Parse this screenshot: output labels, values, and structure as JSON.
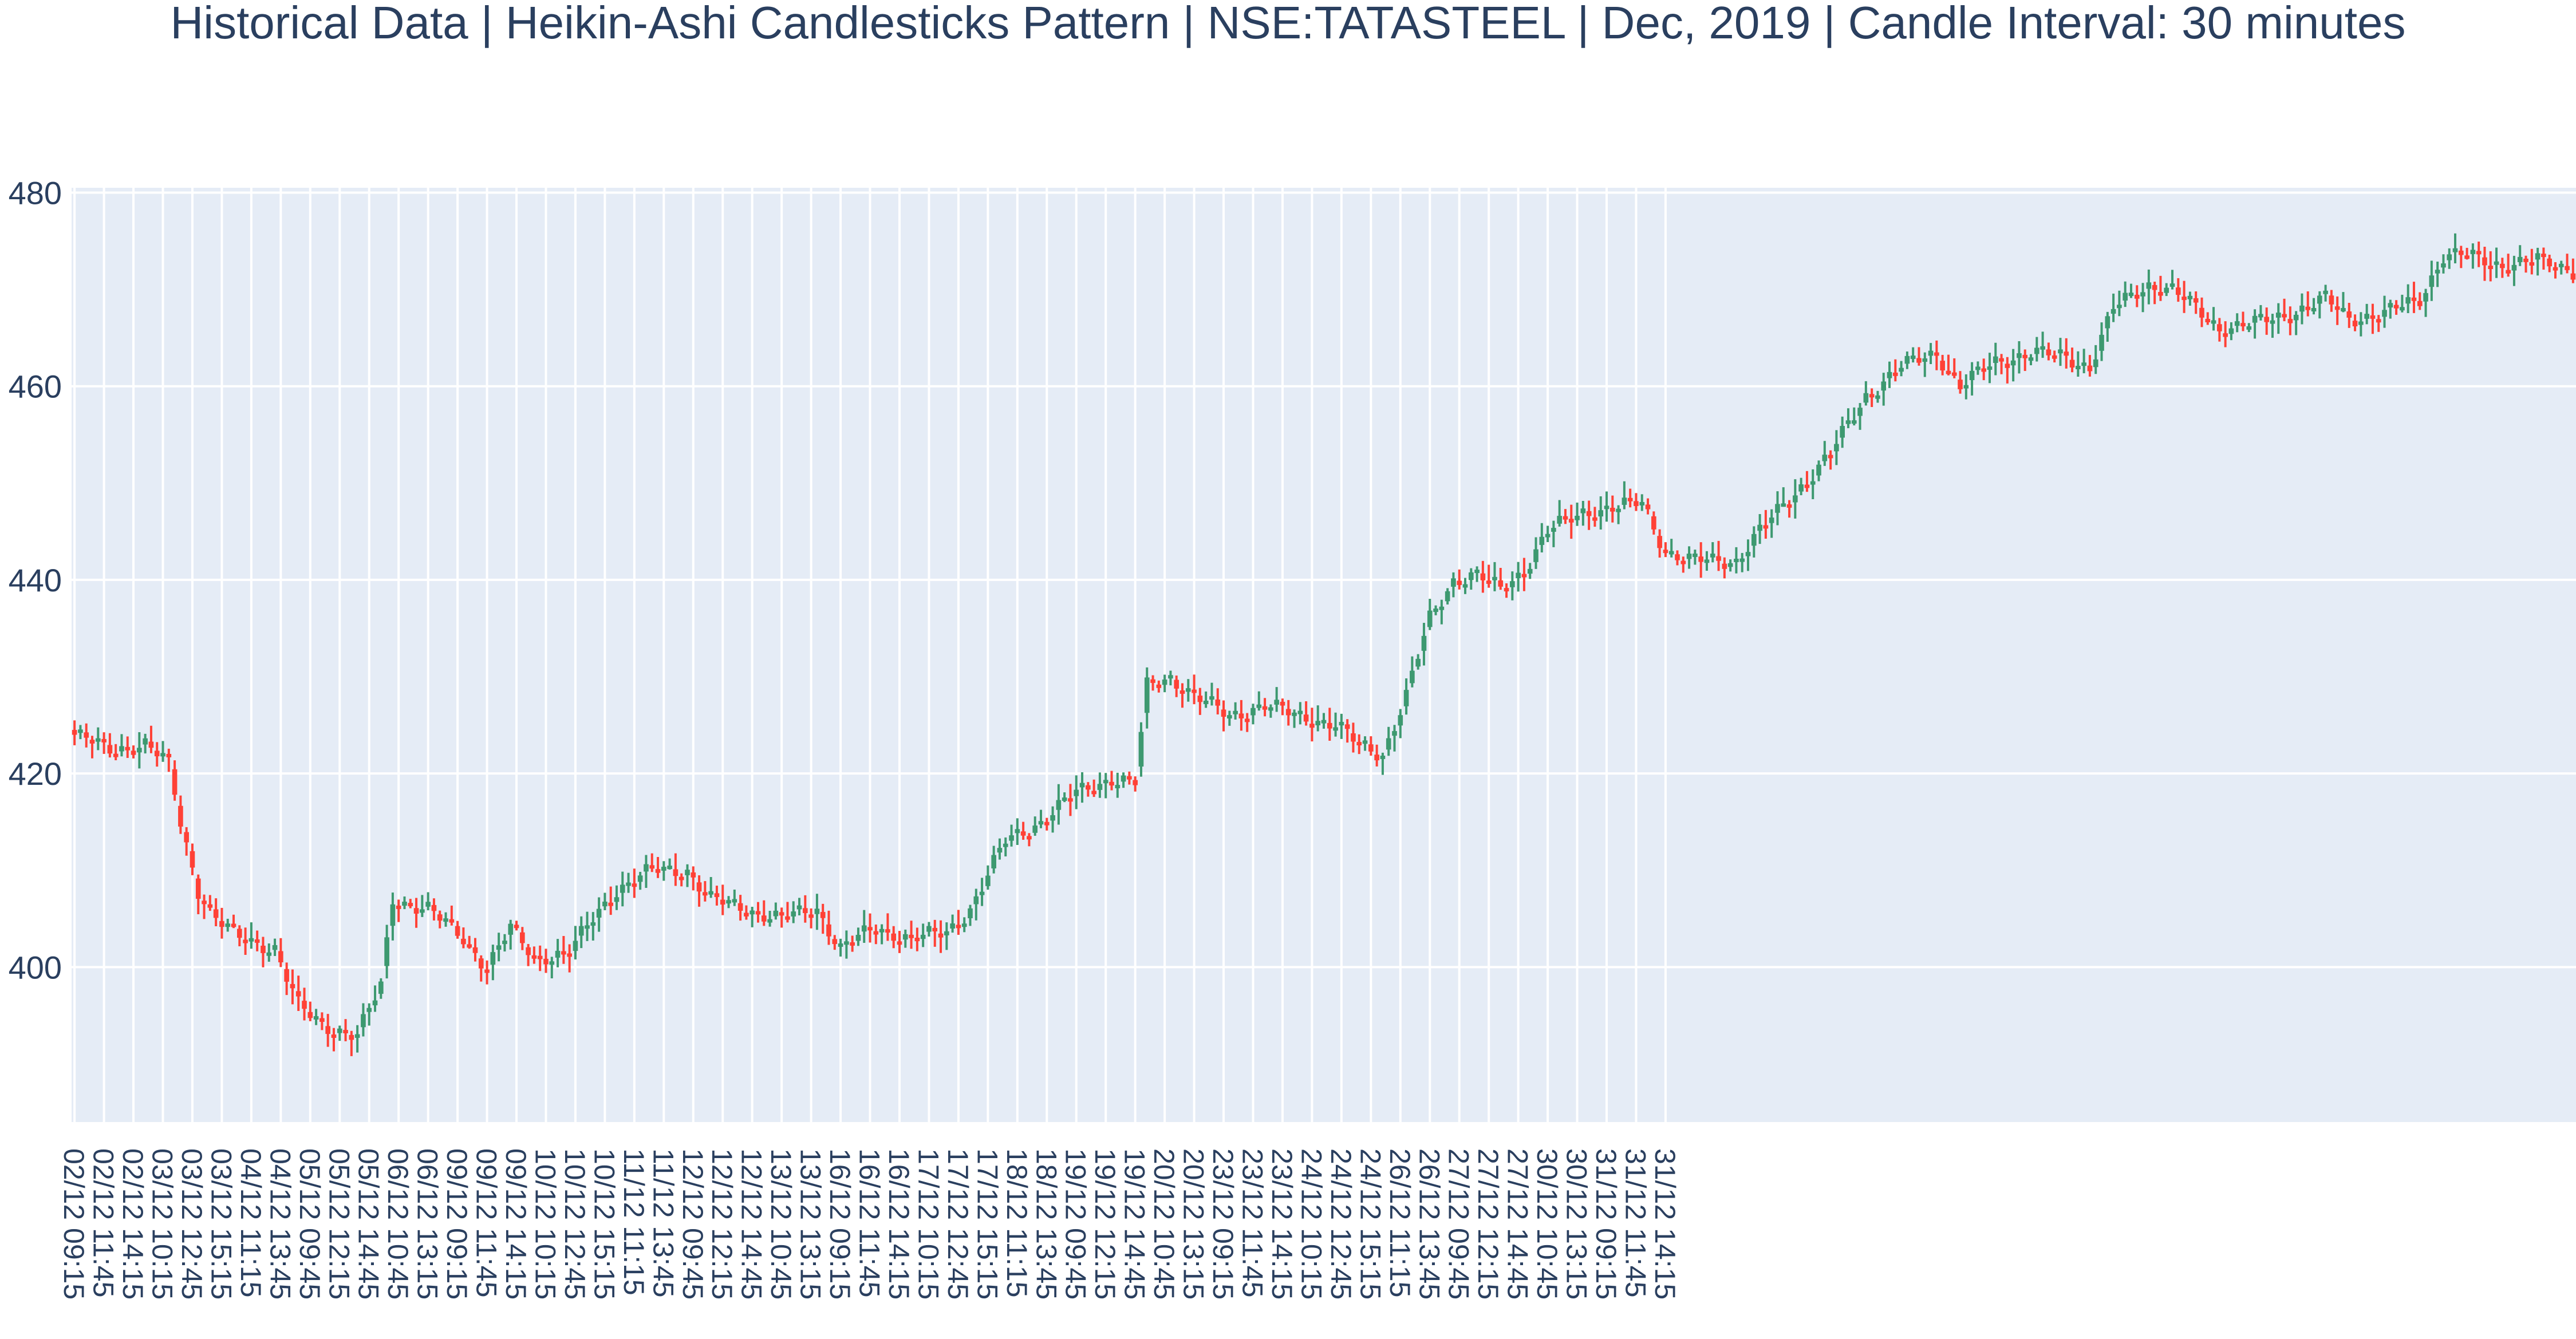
{
  "chart_data": {
    "type": "candlestick",
    "variant": "heikin-ashi",
    "title": "Historical Data | Heikin-Ashi Candlesticks Pattern | NSE:TATASTEEL | Dec, 2019 | Candle Interval: 30 minutes",
    "xlabel": "",
    "ylabel": "",
    "ylim": [
      384,
      480.5
    ],
    "yticks": [
      400,
      420,
      440,
      460,
      480
    ],
    "grid": true,
    "legend": "none",
    "colors": {
      "increasing": "#3d9970",
      "decreasing": "#ff4136",
      "plot_background": "#e5ecf6",
      "grid": "#ffffff",
      "text": "#2a3f5f"
    },
    "session_times": [
      "09:15",
      "09:45",
      "10:15",
      "10:45",
      "11:15",
      "11:45",
      "12:15",
      "12:45",
      "13:15",
      "13:45",
      "14:15",
      "14:45",
      "15:15"
    ],
    "trading_days": [
      "02/12",
      "03/12",
      "04/12",
      "05/12",
      "06/12",
      "09/12",
      "10/12",
      "11/12",
      "12/12",
      "13/12",
      "16/12",
      "17/12",
      "18/12",
      "19/12",
      "20/12",
      "23/12",
      "24/12",
      "26/12",
      "27/12",
      "30/12",
      "31/12"
    ],
    "xtick_labels": [
      "02/12 09:15",
      "02/12 11:45",
      "02/12 14:15",
      "03/12 10:15",
      "03/12 12:45",
      "03/12 15:15",
      "04/12 11:15",
      "04/12 13:45",
      "05/12 09:45",
      "05/12 12:15",
      "05/12 14:45",
      "06/12 10:45",
      "06/12 13:15",
      "09/12 09:15",
      "09/12 11:45",
      "09/12 14:15",
      "10/12 10:15",
      "10/12 12:45",
      "10/12 15:15",
      "11/12 11:15",
      "11/12 13:45",
      "12/12 09:45",
      "12/12 12:15",
      "12/12 14:45",
      "13/12 10:45",
      "13/12 13:15",
      "16/12 09:15",
      "16/12 11:45",
      "16/12 14:15",
      "17/12 10:15",
      "17/12 12:45",
      "17/12 15:15",
      "18/12 11:15",
      "18/12 13:45",
      "19/12 09:45",
      "19/12 12:15",
      "19/12 14:45",
      "20/12 10:45",
      "20/12 13:15",
      "23/12 09:15",
      "23/12 11:45",
      "23/12 14:15",
      "24/12 10:15",
      "24/12 12:45",
      "24/12 15:15",
      "26/12 11:15",
      "26/12 13:45",
      "27/12 09:45",
      "27/12 12:15",
      "27/12 14:45",
      "30/12 10:45",
      "30/12 13:15",
      "31/12 09:15",
      "31/12 11:45",
      "31/12 14:15"
    ],
    "close_anchors": [
      [
        0,
        424
      ],
      [
        6,
        422.5
      ],
      [
        12,
        423
      ],
      [
        16,
        421
      ],
      [
        18,
        415
      ],
      [
        21,
        408
      ],
      [
        24,
        405
      ],
      [
        28,
        403
      ],
      [
        34,
        402
      ],
      [
        38,
        396
      ],
      [
        42,
        394
      ],
      [
        48,
        393
      ],
      [
        52,
        398
      ],
      [
        54,
        407
      ],
      [
        60,
        406
      ],
      [
        66,
        403
      ],
      [
        70,
        400
      ],
      [
        74,
        404
      ],
      [
        78,
        401
      ],
      [
        84,
        401.5
      ],
      [
        88,
        405
      ],
      [
        92,
        408
      ],
      [
        98,
        410
      ],
      [
        104,
        410
      ],
      [
        108,
        407
      ],
      [
        114,
        406
      ],
      [
        120,
        405
      ],
      [
        126,
        406
      ],
      [
        130,
        402
      ],
      [
        136,
        404
      ],
      [
        142,
        403
      ],
      [
        148,
        403.5
      ],
      [
        152,
        406
      ],
      [
        158,
        413
      ],
      [
        164,
        415
      ],
      [
        170,
        418
      ],
      [
        176,
        419.5
      ],
      [
        180,
        419
      ],
      [
        182,
        429
      ],
      [
        186,
        430
      ],
      [
        190,
        428
      ],
      [
        196,
        426
      ],
      [
        202,
        427
      ],
      [
        208,
        426
      ],
      [
        214,
        425
      ],
      [
        218,
        423
      ],
      [
        222,
        422
      ],
      [
        226,
        428
      ],
      [
        230,
        436
      ],
      [
        234,
        440
      ],
      [
        238,
        440.5
      ],
      [
        242,
        439
      ],
      [
        246,
        441
      ],
      [
        250,
        445
      ],
      [
        256,
        447
      ],
      [
        262,
        447.5
      ],
      [
        266,
        448
      ],
      [
        270,
        443
      ],
      [
        274,
        442
      ],
      [
        282,
        442
      ],
      [
        286,
        445
      ],
      [
        292,
        449
      ],
      [
        298,
        453
      ],
      [
        304,
        459
      ],
      [
        310,
        462
      ],
      [
        316,
        463.5
      ],
      [
        320,
        460
      ],
      [
        326,
        462.5
      ],
      [
        332,
        463.5
      ],
      [
        338,
        463
      ],
      [
        342,
        462
      ],
      [
        346,
        468
      ],
      [
        352,
        470.5
      ],
      [
        356,
        470
      ],
      [
        360,
        468
      ],
      [
        364,
        466
      ],
      [
        370,
        466.5
      ],
      [
        376,
        467.5
      ],
      [
        382,
        469
      ],
      [
        386,
        467
      ],
      [
        392,
        467.5
      ],
      [
        398,
        469
      ],
      [
        402,
        473.5
      ],
      [
        406,
        473.5
      ],
      [
        412,
        472.5
      ],
      [
        418,
        473
      ],
      [
        424,
        472
      ]
    ],
    "total_candles": 425
  }
}
